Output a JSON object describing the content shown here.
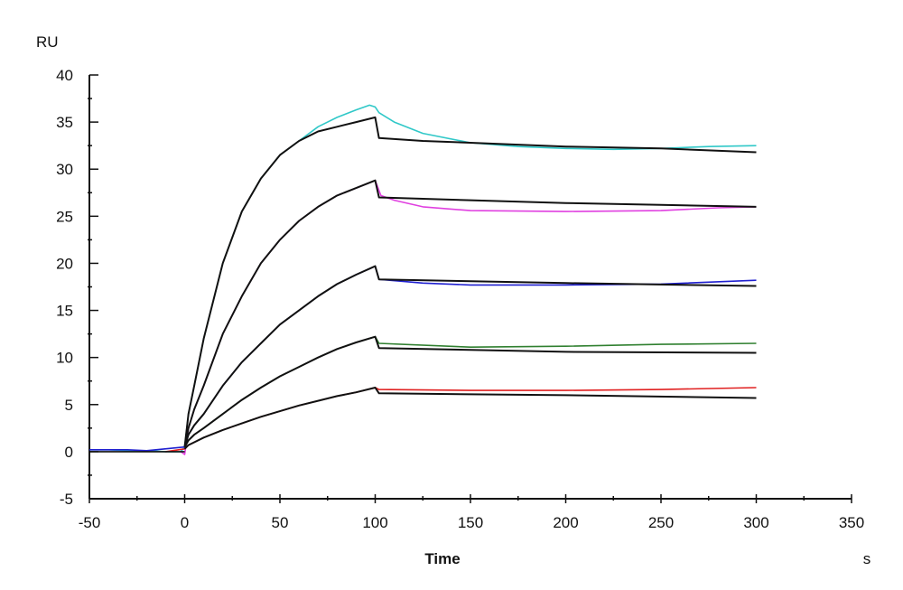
{
  "chart_data": {
    "type": "line",
    "title": "",
    "xlabel": "Time",
    "xunit": "s",
    "ylabel": "RU",
    "xlim": [
      -50,
      350
    ],
    "ylim": [
      -5,
      40
    ],
    "xticks": [
      -50,
      0,
      50,
      100,
      150,
      200,
      250,
      300,
      350
    ],
    "yticks": [
      -5,
      0,
      5,
      10,
      15,
      20,
      25,
      30,
      35,
      40
    ],
    "grid": false,
    "series": [
      {
        "color": "#30c8c8",
        "kind": "measured",
        "x": [
          -50,
          -40,
          -30,
          -20,
          -10,
          -2,
          0,
          2,
          5,
          10,
          20,
          30,
          40,
          50,
          60,
          70,
          80,
          90,
          97,
          100,
          102,
          110,
          125,
          150,
          175,
          200,
          225,
          250,
          275,
          300
        ],
        "y": [
          0.2,
          0.2,
          0.1,
          0.1,
          0,
          0,
          0.5,
          4,
          7,
          12,
          20,
          25.5,
          29,
          31.5,
          33,
          34.5,
          35.5,
          36.3,
          36.8,
          36.6,
          36,
          35,
          33.8,
          32.8,
          32.4,
          32.2,
          32.1,
          32.2,
          32.4,
          32.5
        ]
      },
      {
        "color": "#111111",
        "kind": "fit",
        "x": [
          0,
          2,
          5,
          10,
          20,
          30,
          40,
          50,
          60,
          70,
          80,
          90,
          100,
          102,
          125,
          150,
          200,
          250,
          300
        ],
        "y": [
          0.5,
          4,
          7,
          12,
          20,
          25.5,
          29,
          31.5,
          33,
          34,
          34.5,
          35,
          35.5,
          33.3,
          33,
          32.8,
          32.4,
          32.2,
          31.8
        ]
      },
      {
        "color": "#e040e0",
        "kind": "measured",
        "x": [
          -2,
          0,
          2,
          5,
          10,
          20,
          30,
          40,
          50,
          60,
          70,
          80,
          90,
          100,
          103,
          110,
          125,
          150,
          200,
          250,
          280,
          300
        ],
        "y": [
          0,
          -0.3,
          2.5,
          4.5,
          7,
          12.5,
          16.5,
          20,
          22.5,
          24.5,
          26,
          27.2,
          28,
          28.8,
          27.2,
          26.7,
          26,
          25.6,
          25.5,
          25.6,
          25.9,
          26
        ]
      },
      {
        "color": "#111111",
        "kind": "fit",
        "x": [
          0,
          2,
          5,
          10,
          20,
          30,
          40,
          50,
          60,
          70,
          80,
          90,
          100,
          102,
          150,
          200,
          250,
          300
        ],
        "y": [
          0.5,
          2.5,
          4.5,
          7,
          12.5,
          16.5,
          20,
          22.5,
          24.5,
          26,
          27.2,
          28,
          28.8,
          27,
          26.7,
          26.4,
          26.2,
          26
        ]
      },
      {
        "color": "#2020d0",
        "kind": "measured",
        "x": [
          -50,
          -40,
          -30,
          -20,
          0,
          2,
          5,
          10,
          20,
          30,
          40,
          50,
          60,
          70,
          80,
          90,
          100,
          102,
          125,
          150,
          200,
          250,
          300
        ],
        "y": [
          0.2,
          0.2,
          0.2,
          0.1,
          0.5,
          1.8,
          2.8,
          4,
          7,
          9.5,
          11.5,
          13.5,
          15,
          16.5,
          17.8,
          18.8,
          19.7,
          18.3,
          17.9,
          17.7,
          17.7,
          17.8,
          18.2
        ]
      },
      {
        "color": "#111111",
        "kind": "fit",
        "x": [
          0,
          2,
          5,
          10,
          20,
          30,
          40,
          50,
          60,
          70,
          80,
          90,
          100,
          102,
          200,
          300
        ],
        "y": [
          0.5,
          1.8,
          2.8,
          4,
          7,
          9.5,
          11.5,
          13.5,
          15,
          16.5,
          17.8,
          18.8,
          19.7,
          18.3,
          17.9,
          17.6
        ]
      },
      {
        "color": "#308030",
        "kind": "measured",
        "x": [
          0,
          2,
          5,
          10,
          20,
          30,
          40,
          50,
          60,
          70,
          80,
          90,
          100,
          102,
          150,
          200,
          250,
          300
        ],
        "y": [
          0.5,
          1.2,
          1.8,
          2.5,
          4,
          5.5,
          6.8,
          8,
          9,
          10,
          10.9,
          11.6,
          12.2,
          11.5,
          11.1,
          11.2,
          11.4,
          11.5
        ]
      },
      {
        "color": "#111111",
        "kind": "fit",
        "x": [
          0,
          2,
          5,
          10,
          20,
          30,
          40,
          50,
          60,
          70,
          80,
          90,
          100,
          102,
          200,
          300
        ],
        "y": [
          0.5,
          1.2,
          1.8,
          2.5,
          4,
          5.5,
          6.8,
          8,
          9,
          10,
          10.9,
          11.6,
          12.2,
          11,
          10.6,
          10.5
        ]
      },
      {
        "color": "#e02020",
        "kind": "measured",
        "x": [
          -10,
          0,
          2,
          5,
          10,
          20,
          30,
          40,
          50,
          60,
          70,
          80,
          90,
          100,
          102,
          150,
          200,
          250,
          300
        ],
        "y": [
          0,
          0.3,
          0.7,
          1,
          1.5,
          2.3,
          3,
          3.7,
          4.3,
          4.9,
          5.4,
          5.9,
          6.3,
          6.8,
          6.6,
          6.5,
          6.5,
          6.6,
          6.8
        ]
      },
      {
        "color": "#111111",
        "kind": "fit",
        "x": [
          0,
          2,
          5,
          10,
          20,
          30,
          40,
          50,
          60,
          70,
          80,
          90,
          100,
          102,
          200,
          300
        ],
        "y": [
          0.3,
          0.7,
          1,
          1.5,
          2.3,
          3,
          3.7,
          4.3,
          4.9,
          5.4,
          5.9,
          6.3,
          6.8,
          6.2,
          6,
          5.7
        ]
      },
      {
        "color": "#111111",
        "kind": "baseline",
        "x": [
          -50,
          0
        ],
        "y": [
          0,
          0
        ]
      }
    ]
  }
}
